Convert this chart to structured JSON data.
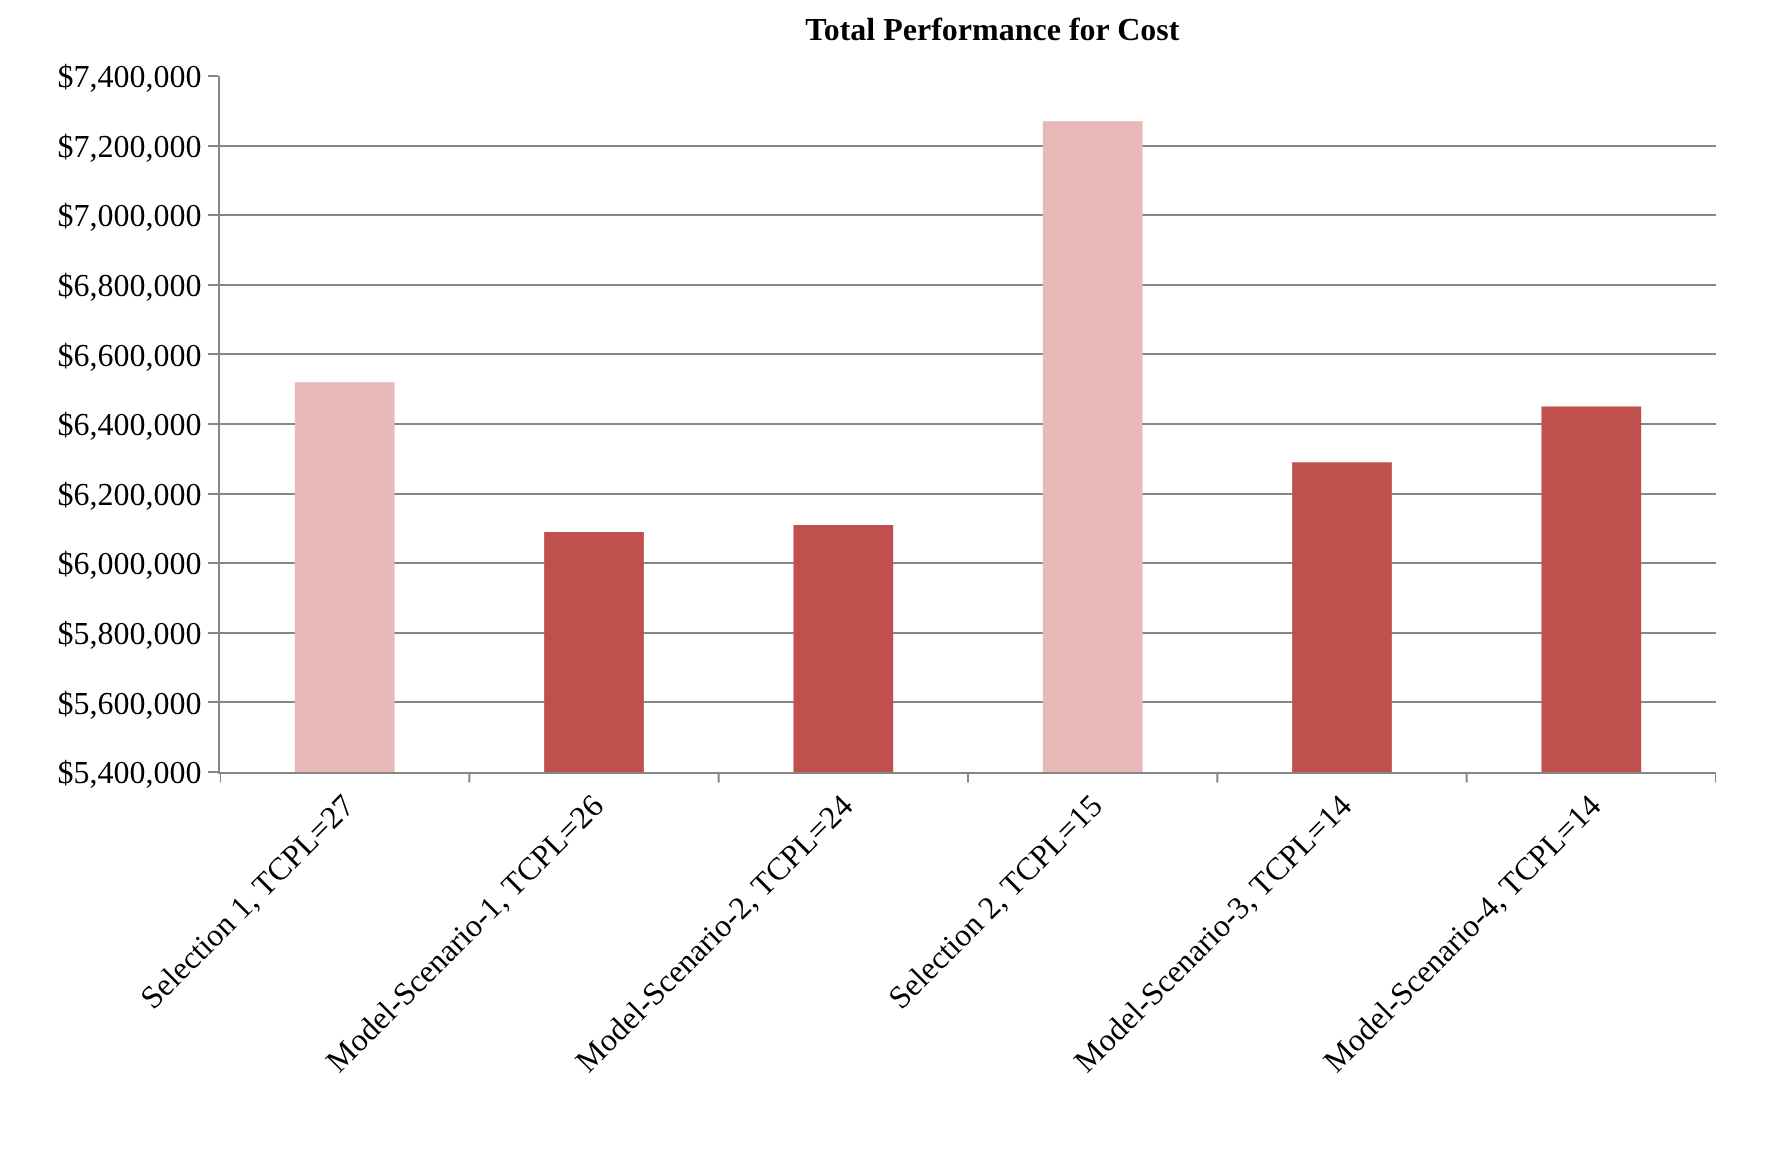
{
  "chart_data": {
    "type": "bar",
    "title": "Total Performance for Cost",
    "categories": [
      "Selection 1, TCPL=27",
      "Model-Scenario-1, TCPL=26",
      "Model-Scenario-2, TCPL=24",
      "Selection 2, TCPL=15",
      "Model-Scenario-3, TCPL=14",
      "Model-Scenario-4, TCPL=14"
    ],
    "values": [
      6520000,
      6090000,
      6110000,
      7270000,
      6290000,
      6450000
    ],
    "colors": [
      "#e6b8b7",
      "#c0504d",
      "#c0504d",
      "#e6b8b7",
      "#c0504d",
      "#c0504d"
    ],
    "ylim": [
      5400000,
      7400000
    ],
    "yticks": [
      {
        "value": 5400000,
        "label": "$5,400,000"
      },
      {
        "value": 5600000,
        "label": "$5,600,000"
      },
      {
        "value": 5800000,
        "label": "$5,800,000"
      },
      {
        "value": 6000000,
        "label": "$6,000,000"
      },
      {
        "value": 6200000,
        "label": "$6,200,000"
      },
      {
        "value": 6400000,
        "label": "$6,400,000"
      },
      {
        "value": 6600000,
        "label": "$6,600,000"
      },
      {
        "value": 6800000,
        "label": "$6,800,000"
      },
      {
        "value": 7000000,
        "label": "$7,000,000"
      },
      {
        "value": 7200000,
        "label": "$7,200,000"
      },
      {
        "value": 7400000,
        "label": "$7,400,000"
      }
    ],
    "grid": "y"
  }
}
